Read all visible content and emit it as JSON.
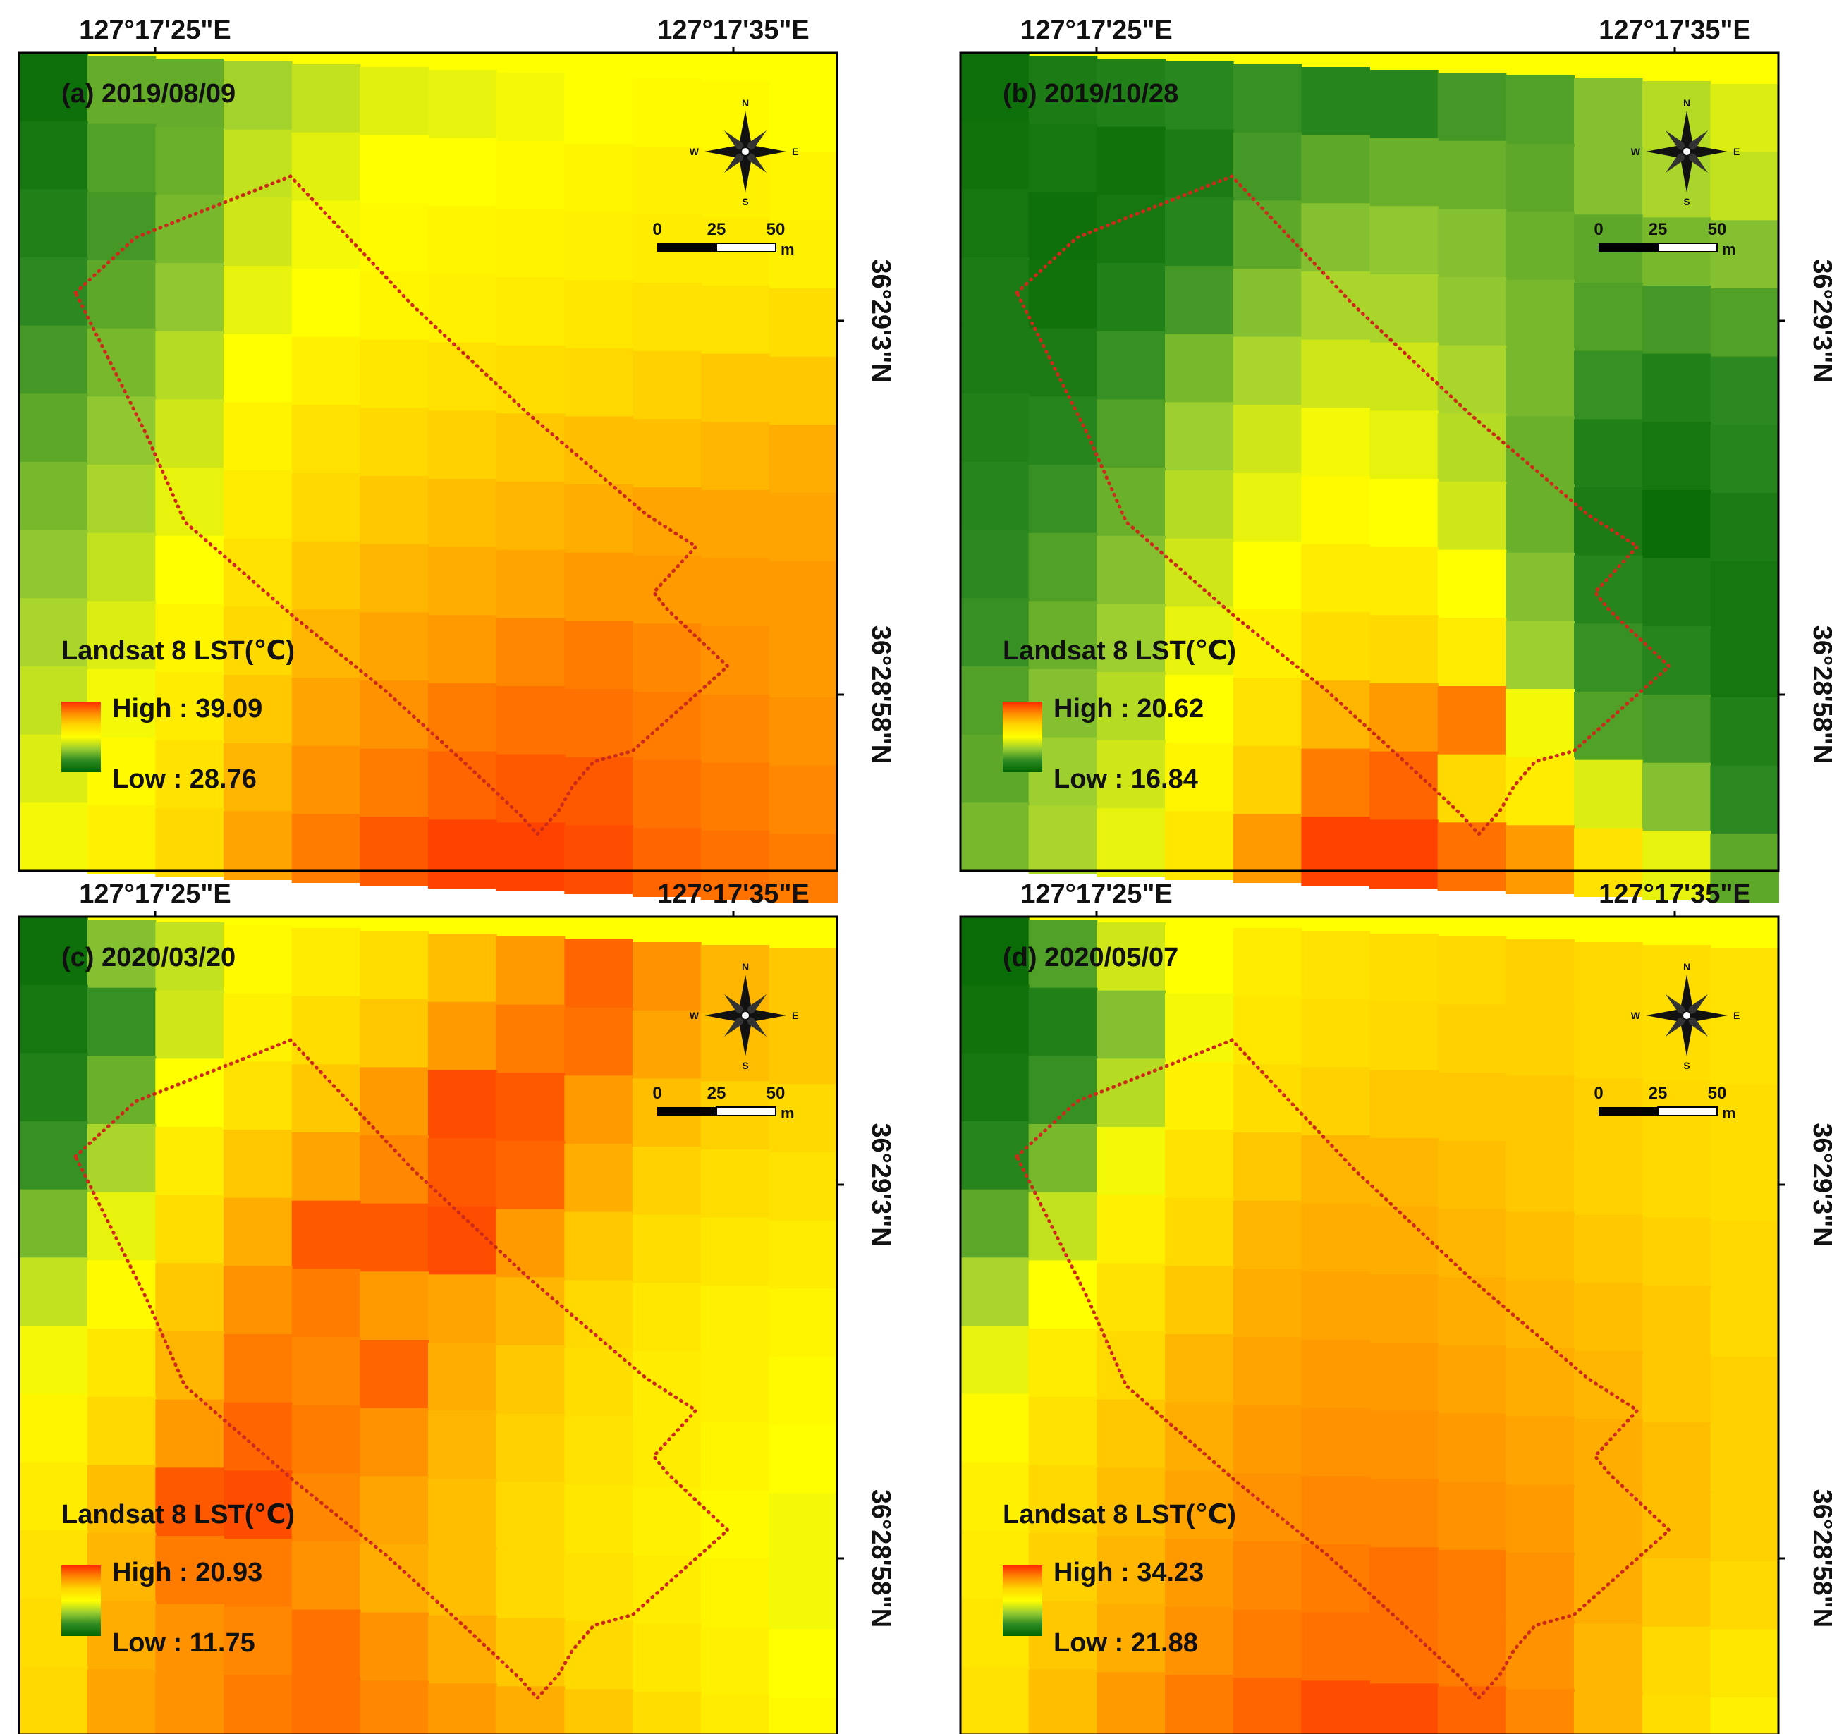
{
  "figure": {
    "panels": [
      {
        "id": "a",
        "label": "(a) 2019/08/09",
        "legend": {
          "title": "Landsat 8 LST(℃)",
          "high": "High : 39.09",
          "low": "Low : 28.76"
        },
        "grid": [
          [
            0.05,
            0.25,
            0.25,
            0.35,
            0.4,
            0.45,
            0.46,
            0.48,
            0.5,
            0.52,
            0.52,
            0.5
          ],
          [
            0.08,
            0.22,
            0.26,
            0.4,
            0.45,
            0.5,
            0.5,
            0.52,
            0.54,
            0.56,
            0.56,
            0.54
          ],
          [
            0.12,
            0.2,
            0.28,
            0.42,
            0.48,
            0.52,
            0.54,
            0.55,
            0.56,
            0.58,
            0.58,
            0.56
          ],
          [
            0.16,
            0.24,
            0.32,
            0.46,
            0.5,
            0.54,
            0.56,
            0.58,
            0.6,
            0.62,
            0.62,
            0.64
          ],
          [
            0.2,
            0.28,
            0.38,
            0.5,
            0.56,
            0.6,
            0.62,
            0.64,
            0.66,
            0.68,
            0.7,
            0.7
          ],
          [
            0.24,
            0.32,
            0.42,
            0.55,
            0.62,
            0.66,
            0.68,
            0.7,
            0.72,
            0.72,
            0.74,
            0.76
          ],
          [
            0.28,
            0.36,
            0.46,
            0.58,
            0.66,
            0.7,
            0.72,
            0.74,
            0.76,
            0.78,
            0.78,
            0.78
          ],
          [
            0.32,
            0.4,
            0.5,
            0.62,
            0.7,
            0.74,
            0.76,
            0.78,
            0.8,
            0.8,
            0.8,
            0.8
          ],
          [
            0.36,
            0.44,
            0.54,
            0.66,
            0.74,
            0.78,
            0.8,
            0.84,
            0.86,
            0.84,
            0.82,
            0.8
          ],
          [
            0.4,
            0.48,
            0.58,
            0.7,
            0.78,
            0.82,
            0.86,
            0.88,
            0.88,
            0.86,
            0.84,
            0.82
          ],
          [
            0.44,
            0.52,
            0.62,
            0.74,
            0.82,
            0.86,
            0.9,
            0.92,
            0.92,
            0.88,
            0.86,
            0.84
          ],
          [
            0.48,
            0.56,
            0.66,
            0.78,
            0.86,
            0.92,
            0.96,
            0.96,
            0.94,
            0.9,
            0.88,
            0.86
          ]
        ]
      },
      {
        "id": "b",
        "label": "(b) 2019/10/28",
        "legend": {
          "title": "Landsat 8 LST(℃)",
          "high": "High : 20.62",
          "low": "Low : 16.84"
        },
        "grid": [
          [
            0.05,
            0.1,
            0.12,
            0.15,
            0.18,
            0.14,
            0.14,
            0.2,
            0.22,
            0.3,
            0.38,
            0.44
          ],
          [
            0.06,
            0.08,
            0.06,
            0.1,
            0.2,
            0.24,
            0.26,
            0.26,
            0.24,
            0.3,
            0.36,
            0.4
          ],
          [
            0.08,
            0.05,
            0.08,
            0.14,
            0.24,
            0.3,
            0.32,
            0.3,
            0.26,
            0.24,
            0.28,
            0.3
          ],
          [
            0.1,
            0.06,
            0.12,
            0.2,
            0.3,
            0.36,
            0.36,
            0.32,
            0.28,
            0.22,
            0.2,
            0.22
          ],
          [
            0.1,
            0.1,
            0.18,
            0.28,
            0.36,
            0.42,
            0.42,
            0.36,
            0.28,
            0.18,
            0.12,
            0.16
          ],
          [
            0.12,
            0.14,
            0.22,
            0.34,
            0.42,
            0.48,
            0.46,
            0.38,
            0.26,
            0.12,
            0.08,
            0.14
          ],
          [
            0.14,
            0.18,
            0.26,
            0.38,
            0.46,
            0.52,
            0.5,
            0.42,
            0.26,
            0.1,
            0.04,
            0.1
          ],
          [
            0.16,
            0.22,
            0.3,
            0.42,
            0.5,
            0.58,
            0.58,
            0.5,
            0.3,
            0.14,
            0.1,
            0.08
          ],
          [
            0.18,
            0.26,
            0.34,
            0.46,
            0.56,
            0.64,
            0.66,
            0.58,
            0.34,
            0.18,
            0.14,
            0.08
          ],
          [
            0.22,
            0.3,
            0.38,
            0.5,
            0.62,
            0.74,
            0.8,
            0.86,
            0.48,
            0.22,
            0.2,
            0.12
          ],
          [
            0.24,
            0.34,
            0.42,
            0.54,
            0.68,
            0.86,
            0.9,
            0.66,
            0.58,
            0.44,
            0.3,
            0.16
          ],
          [
            0.28,
            0.36,
            0.46,
            0.6,
            0.8,
            0.96,
            0.96,
            0.88,
            0.8,
            0.62,
            0.46,
            0.24
          ]
        ]
      },
      {
        "id": "c",
        "label": "(c) 2020/03/20",
        "legend": {
          "title": "Landsat 8 LST(℃)",
          "high": "High : 20.93",
          "low": "Low : 11.75"
        },
        "grid": [
          [
            0.05,
            0.3,
            0.4,
            0.52,
            0.58,
            0.64,
            0.72,
            0.8,
            0.9,
            0.82,
            0.74,
            0.7
          ],
          [
            0.08,
            0.18,
            0.42,
            0.56,
            0.64,
            0.7,
            0.8,
            0.86,
            0.88,
            0.78,
            0.72,
            0.7
          ],
          [
            0.12,
            0.26,
            0.5,
            0.62,
            0.7,
            0.8,
            0.94,
            0.92,
            0.8,
            0.72,
            0.68,
            0.66
          ],
          [
            0.18,
            0.36,
            0.58,
            0.7,
            0.78,
            0.84,
            0.92,
            0.9,
            0.76,
            0.68,
            0.64,
            0.62
          ],
          [
            0.28,
            0.46,
            0.64,
            0.76,
            0.92,
            0.92,
            0.94,
            0.8,
            0.7,
            0.64,
            0.6,
            0.58
          ],
          [
            0.4,
            0.52,
            0.7,
            0.82,
            0.86,
            0.8,
            0.78,
            0.74,
            0.66,
            0.6,
            0.56,
            0.54
          ],
          [
            0.48,
            0.6,
            0.74,
            0.86,
            0.84,
            0.9,
            0.76,
            0.7,
            0.64,
            0.58,
            0.56,
            0.52
          ],
          [
            0.54,
            0.66,
            0.8,
            0.9,
            0.86,
            0.82,
            0.74,
            0.68,
            0.62,
            0.58,
            0.54,
            0.5
          ],
          [
            0.58,
            0.72,
            0.92,
            0.94,
            0.84,
            0.78,
            0.72,
            0.66,
            0.6,
            0.56,
            0.52,
            0.48
          ],
          [
            0.62,
            0.74,
            0.86,
            0.86,
            0.82,
            0.76,
            0.72,
            0.66,
            0.62,
            0.58,
            0.54,
            0.48
          ],
          [
            0.64,
            0.76,
            0.82,
            0.84,
            0.88,
            0.82,
            0.76,
            0.7,
            0.66,
            0.6,
            0.56,
            0.5
          ],
          [
            0.66,
            0.78,
            0.82,
            0.86,
            0.88,
            0.84,
            0.8,
            0.76,
            0.7,
            0.64,
            0.58,
            0.52
          ]
        ]
      },
      {
        "id": "d",
        "label": "(d) 2020/05/07",
        "legend": {
          "title": "Landsat 8 LST(℃)",
          "high": "High : 34.23",
          "low": "Low : 21.88"
        },
        "grid": [
          [
            0.04,
            0.22,
            0.42,
            0.5,
            0.58,
            0.62,
            0.64,
            0.66,
            0.68,
            0.66,
            0.64,
            0.62
          ],
          [
            0.06,
            0.12,
            0.3,
            0.48,
            0.6,
            0.64,
            0.66,
            0.68,
            0.68,
            0.66,
            0.64,
            0.62
          ],
          [
            0.08,
            0.18,
            0.38,
            0.56,
            0.64,
            0.68,
            0.7,
            0.7,
            0.7,
            0.68,
            0.66,
            0.64
          ],
          [
            0.14,
            0.28,
            0.48,
            0.62,
            0.7,
            0.74,
            0.74,
            0.72,
            0.7,
            0.68,
            0.66,
            0.64
          ],
          [
            0.24,
            0.4,
            0.56,
            0.66,
            0.74,
            0.76,
            0.76,
            0.74,
            0.72,
            0.7,
            0.68,
            0.66
          ],
          [
            0.36,
            0.5,
            0.62,
            0.7,
            0.76,
            0.78,
            0.78,
            0.76,
            0.74,
            0.72,
            0.7,
            0.66
          ],
          [
            0.46,
            0.58,
            0.66,
            0.74,
            0.78,
            0.8,
            0.8,
            0.78,
            0.76,
            0.74,
            0.7,
            0.68
          ],
          [
            0.52,
            0.62,
            0.7,
            0.76,
            0.8,
            0.82,
            0.82,
            0.8,
            0.78,
            0.76,
            0.72,
            0.68
          ],
          [
            0.56,
            0.66,
            0.72,
            0.78,
            0.82,
            0.84,
            0.84,
            0.82,
            0.8,
            0.76,
            0.72,
            0.68
          ],
          [
            0.58,
            0.68,
            0.74,
            0.8,
            0.84,
            0.86,
            0.88,
            0.86,
            0.82,
            0.76,
            0.7,
            0.66
          ],
          [
            0.6,
            0.7,
            0.76,
            0.82,
            0.86,
            0.88,
            0.88,
            0.86,
            0.82,
            0.74,
            0.66,
            0.6
          ],
          [
            0.62,
            0.72,
            0.8,
            0.86,
            0.9,
            0.94,
            0.94,
            0.9,
            0.84,
            0.74,
            0.64,
            0.56
          ]
        ]
      }
    ],
    "axes": {
      "lon_left": "127°17'25\"E",
      "lon_right": "127°17'35\"E",
      "lat_top": "36°29'3\"N",
      "lat_bottom": "36°28'58\"N"
    },
    "scale_bar": {
      "labels": [
        "0",
        "25",
        "50"
      ],
      "unit": "m"
    },
    "compass": {
      "n": "N",
      "s": "S",
      "e": "E",
      "w": "W"
    },
    "colors": {
      "ramp": [
        "#006400",
        "#2e8b22",
        "#9acd32",
        "#ffff00",
        "#ffd700",
        "#ff8c00",
        "#ff2a00"
      ],
      "boundary": "#cc2a1a"
    }
  }
}
